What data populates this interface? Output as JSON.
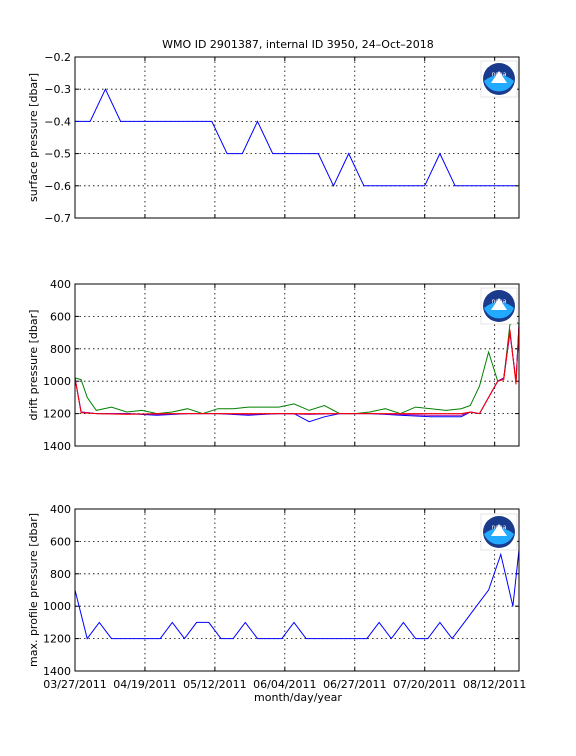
{
  "title": "WMO ID 2901387, internal ID 3950, 24–Oct–2018",
  "logo_text": "noaa",
  "colors": {
    "blue": "#0000ff",
    "green": "#008000",
    "red": "#ff0000",
    "purple": "#a000a0"
  },
  "chart_data": [
    {
      "type": "line",
      "panel": "surface",
      "ylabel": "surface pressure [dbar]",
      "xlabel": "",
      "ylim": [
        -0.7,
        -0.2
      ],
      "yticks": [
        -0.2,
        -0.3,
        -0.4,
        -0.5,
        -0.6,
        -0.7
      ],
      "ytick_labels": [
        "−0.2",
        "−0.3",
        "−0.4",
        "−0.5",
        "−0.6",
        "−0.7"
      ],
      "xlim": [
        0,
        146
      ],
      "xticks": [
        0,
        23,
        46,
        69,
        92,
        115,
        138
      ],
      "xtick_labels": [
        "",
        "",
        "",
        "",
        "",
        "",
        ""
      ],
      "reverse_y": false,
      "grid": true,
      "series": [
        {
          "color": "blue",
          "x": [
            0,
            5,
            10,
            15,
            20,
            25,
            30,
            35,
            40,
            45,
            50,
            55,
            60,
            65,
            70,
            75,
            80,
            85,
            90,
            95,
            100,
            105,
            110,
            115,
            120,
            125,
            130,
            135,
            140,
            145
          ],
          "y": [
            -0.4,
            -0.4,
            -0.3,
            -0.4,
            -0.4,
            -0.4,
            -0.4,
            -0.4,
            -0.4,
            -0.4,
            -0.5,
            -0.5,
            -0.4,
            -0.5,
            -0.5,
            -0.5,
            -0.5,
            -0.6,
            -0.5,
            -0.6,
            -0.6,
            -0.6,
            -0.6,
            -0.6,
            -0.5,
            -0.6,
            -0.6,
            -0.6,
            -0.6,
            -0.6
          ]
        }
      ]
    },
    {
      "type": "line",
      "panel": "drift",
      "ylabel": "drift pressure [dbar]",
      "xlabel": "",
      "ylim": [
        400,
        1400
      ],
      "yticks": [
        400,
        600,
        800,
        1000,
        1200,
        1400
      ],
      "ytick_labels": [
        "400",
        "600",
        "800",
        "1000",
        "1200",
        "1400"
      ],
      "xlim": [
        0,
        146
      ],
      "xticks": [
        0,
        23,
        46,
        69,
        92,
        115,
        138
      ],
      "xtick_labels": [
        "",
        "",
        "",
        "",
        "",
        "",
        ""
      ],
      "reverse_y": true,
      "grid": true,
      "series": [
        {
          "color": "green",
          "x": [
            0,
            2,
            4,
            7,
            12,
            17,
            22,
            27,
            32,
            37,
            42,
            47,
            52,
            57,
            62,
            67,
            72,
            77,
            82,
            87,
            92,
            97,
            102,
            107,
            112,
            117,
            122,
            127,
            130,
            133,
            136,
            139,
            141,
            143,
            145,
            146
          ],
          "y": [
            980,
            990,
            1100,
            1180,
            1160,
            1190,
            1180,
            1200,
            1190,
            1170,
            1200,
            1170,
            1170,
            1160,
            1160,
            1160,
            1140,
            1180,
            1150,
            1200,
            1200,
            1190,
            1170,
            1200,
            1160,
            1170,
            1180,
            1170,
            1150,
            1030,
            820,
            1000,
            980,
            650,
            630,
            650
          ]
        },
        {
          "color": "blue",
          "x": [
            0,
            2,
            7,
            17,
            27,
            37,
            47,
            57,
            67,
            72,
            77,
            82,
            87,
            97,
            107,
            117,
            127,
            130,
            133,
            136,
            139,
            141,
            143,
            145,
            146
          ],
          "y": [
            980,
            1190,
            1200,
            1200,
            1210,
            1200,
            1200,
            1210,
            1200,
            1200,
            1250,
            1220,
            1200,
            1200,
            1210,
            1220,
            1220,
            1190,
            1200,
            1100,
            1000,
            980,
            700,
            1000,
            650
          ]
        },
        {
          "color": "purple",
          "x": [
            0,
            2,
            7,
            17,
            27,
            37,
            47,
            57,
            67,
            77,
            87,
            97,
            107,
            117,
            127,
            130,
            133,
            136,
            139,
            141,
            143,
            145,
            146
          ],
          "y": [
            980,
            1190,
            1200,
            1200,
            1205,
            1200,
            1200,
            1205,
            1200,
            1205,
            1200,
            1200,
            1205,
            1210,
            1210,
            1190,
            1200,
            1100,
            1000,
            980,
            700,
            1000,
            650
          ]
        },
        {
          "color": "red",
          "x": [
            0,
            2,
            7,
            17,
            27,
            37,
            47,
            57,
            67,
            77,
            87,
            97,
            107,
            117,
            127,
            130,
            133,
            136,
            139,
            141,
            143,
            145,
            146
          ],
          "y": [
            980,
            1195,
            1200,
            1205,
            1200,
            1200,
            1200,
            1200,
            1200,
            1200,
            1200,
            1200,
            1200,
            1200,
            1200,
            1190,
            1200,
            1100,
            1000,
            990,
            680,
            1020,
            650
          ]
        }
      ]
    },
    {
      "type": "line",
      "panel": "profile",
      "ylabel": "max. profile pressure [dbar]",
      "xlabel": "month/day/year",
      "ylim": [
        400,
        1400
      ],
      "yticks": [
        400,
        600,
        800,
        1000,
        1200,
        1400
      ],
      "ytick_labels": [
        "400",
        "600",
        "800",
        "1000",
        "1200",
        "1400"
      ],
      "xlim": [
        0,
        146
      ],
      "xticks": [
        0,
        23,
        46,
        69,
        92,
        115,
        138
      ],
      "xtick_labels": [
        "03/27/2011",
        "04/19/2011",
        "05/12/2011",
        "06/04/2011",
        "06/27/2011",
        "07/20/2011",
        "08/12/2011"
      ],
      "reverse_y": true,
      "grid": true,
      "series": [
        {
          "color": "blue",
          "x": [
            0,
            4,
            8,
            12,
            16,
            20,
            24,
            28,
            32,
            36,
            40,
            44,
            48,
            52,
            56,
            60,
            64,
            68,
            72,
            76,
            80,
            84,
            88,
            92,
            96,
            100,
            104,
            108,
            112,
            116,
            120,
            124,
            128,
            132,
            136,
            140,
            144,
            146
          ],
          "y": [
            900,
            1200,
            1100,
            1200,
            1200,
            1200,
            1200,
            1200,
            1100,
            1200,
            1100,
            1100,
            1200,
            1200,
            1100,
            1200,
            1200,
            1200,
            1100,
            1200,
            1200,
            1200,
            1200,
            1200,
            1200,
            1100,
            1200,
            1100,
            1200,
            1200,
            1100,
            1200,
            1100,
            1000,
            900,
            680,
            1000,
            650
          ]
        }
      ]
    }
  ]
}
